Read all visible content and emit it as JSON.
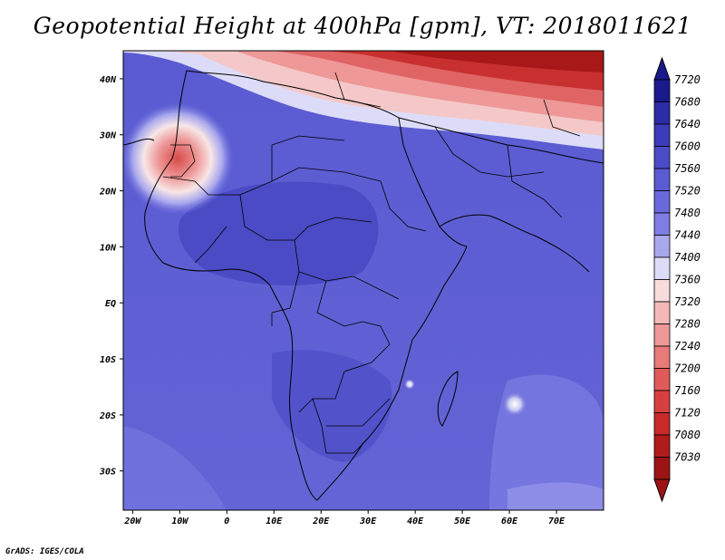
{
  "title": "Geopotential Height at 400hPa [gpm], VT: 2018011621",
  "credit": "GrADS: IGES/COLA",
  "map": {
    "lon_range": [
      -22,
      80
    ],
    "lat_range": [
      -37,
      45
    ],
    "lon_ticks": [
      {
        "value": -20,
        "label": "20W"
      },
      {
        "value": -10,
        "label": "10W"
      },
      {
        "value": 0,
        "label": "0"
      },
      {
        "value": 10,
        "label": "10E"
      },
      {
        "value": 20,
        "label": "20E"
      },
      {
        "value": 30,
        "label": "30E"
      },
      {
        "value": 40,
        "label": "40E"
      },
      {
        "value": 50,
        "label": "50E"
      },
      {
        "value": 60,
        "label": "60E"
      },
      {
        "value": 70,
        "label": "70E"
      }
    ],
    "lat_ticks": [
      {
        "value": 40,
        "label": "40N"
      },
      {
        "value": 30,
        "label": "30N"
      },
      {
        "value": 20,
        "label": "20N"
      },
      {
        "value": 10,
        "label": "10N"
      },
      {
        "value": 0,
        "label": "EQ"
      },
      {
        "value": -10,
        "label": "10S"
      },
      {
        "value": -20,
        "label": "20S"
      },
      {
        "value": -30,
        "label": "30S"
      }
    ]
  },
  "colorbar": {
    "labels": [
      "7720",
      "7680",
      "7640",
      "7600",
      "7560",
      "7520",
      "7480",
      "7440",
      "7400",
      "7360",
      "7320",
      "7280",
      "7240",
      "7200",
      "7160",
      "7120",
      "7080",
      "7030"
    ],
    "colors": [
      "#1a1a8c",
      "#2c2ca6",
      "#3c3cba",
      "#4b4bc8",
      "#5a5ad2",
      "#6a6adc",
      "#7d7de4",
      "#a8a8ee",
      "#dcdcf8",
      "#f8dcdc",
      "#f4b8b8",
      "#ee9898",
      "#e87a7a",
      "#e05a5a",
      "#d84040",
      "#c82a2a",
      "#b01c1c",
      "#9c1414"
    ],
    "top_arrow_color": "#1a1a8c",
    "bottom_arrow_color": "#9c1414"
  }
}
